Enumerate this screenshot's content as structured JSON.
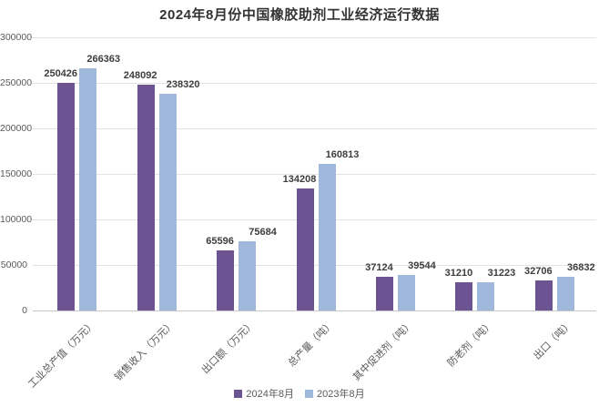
{
  "chart_data": {
    "type": "bar",
    "title": "2024年8月份中国橡胶助剂工业经济运行数据",
    "categories": [
      "工业总产值（万元）",
      "销售收入（万元）",
      "出口额（万元）",
      "总产量（吨）",
      "其中促进剂（吨）",
      "防老剂（吨）",
      "出口（吨）"
    ],
    "series": [
      {
        "name": "2024年8月",
        "color": "#6C5493",
        "values": [
          250426,
          248092,
          65596,
          134208,
          37124,
          31210,
          32706
        ]
      },
      {
        "name": "2023年8月",
        "color": "#9FB8DB",
        "values": [
          266363,
          238320,
          75684,
          160813,
          39544,
          31223,
          36832
        ]
      }
    ],
    "ylim": [
      0,
      300000
    ],
    "yticks": [
      0,
      50000,
      100000,
      150000,
      200000,
      250000,
      300000
    ],
    "xlabel": "",
    "ylabel": "",
    "grid": true,
    "legend_position": "bottom",
    "data_labels": true,
    "styles": {
      "series1_color": "#6C5493",
      "series2_color": "#9FB8DB",
      "grid_color": "#e3e3e3",
      "baseline_color": "#c6c6c6",
      "axis_text_color": "#595959",
      "value_label_color": "#3d3d3d",
      "title_color": "#333333",
      "background": "#ffffff"
    }
  }
}
